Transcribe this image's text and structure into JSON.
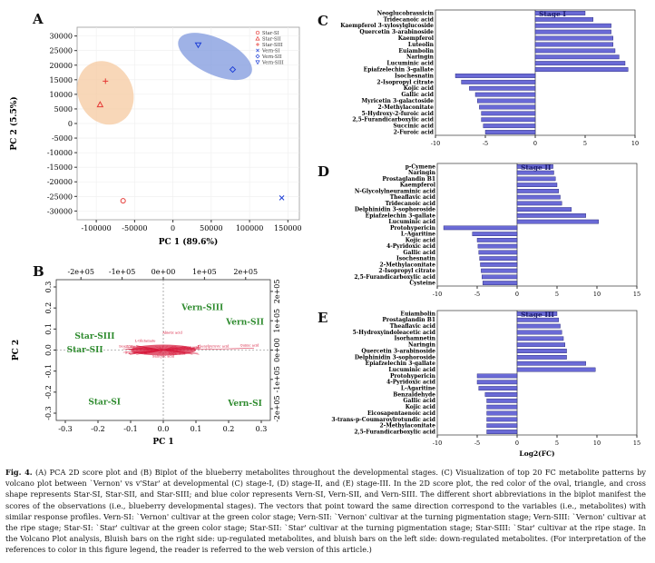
{
  "panels": {
    "A": {
      "label": "A",
      "xlabel": "PC 1 (89.6%)",
      "ylabel": "PC 2 (5.5%)",
      "xticks": [
        "-100000",
        "-50000",
        "0",
        "50000",
        "100000",
        "150000"
      ],
      "yticks": [
        "30000",
        "25000",
        "20000",
        "15000",
        "10000",
        "5000",
        "0",
        "-5000",
        "-10000",
        "-15000",
        "-20000",
        "-25000",
        "-30000"
      ],
      "legend": [
        "Star-SI",
        "Star-SII",
        "Star-SIII",
        "Vern-SI",
        "Vern-SII",
        "Vern-SIII"
      ]
    },
    "B": {
      "label": "B",
      "xlabel": "PC 1",
      "ylabel": "PC 2",
      "bottom_ticks": [
        "-0.3",
        "-0.2",
        "-0.1",
        "0.0",
        "0.1",
        "0.2",
        "0.3"
      ],
      "left_ticks": [
        "0.3",
        "0.2",
        "0.1",
        "0.0",
        "-0.1",
        "-0.2",
        "-0.3"
      ],
      "top_ticks": [
        "-2e+05",
        "-1e+05",
        "0e+00",
        "1e+05",
        "2e+05"
      ],
      "right_ticks": [
        "2e+05",
        "1e+05",
        "0e+00",
        "-1e+05",
        "-2e+05"
      ],
      "sample_labels": [
        "Vern-SIII",
        "Vern-SII",
        "Star-SIII",
        "Star-SII",
        "Star-SI",
        "Vern-SI"
      ],
      "var_labels": [
        "Abietic acid",
        "Quinic acid",
        "Isocitrate",
        "L-Glutamate",
        "Succinic acid",
        "Salicylic acid",
        "Malic acid",
        "Citric acid",
        "Phenylpyruvic acid"
      ]
    },
    "C": {
      "label": "C",
      "stage": "Stage I",
      "xticks": [
        "-10",
        "-5",
        "0",
        "5",
        "10"
      ],
      "categories": [
        "Neoglucobrassicin",
        "Tridecanoic acid",
        "Kaempferol 3-xylosylglucoside",
        "Quercetin 3-arabinoside",
        "Kaempferol",
        "Luteolin",
        "Euiambolin",
        "Naringin",
        "Lucuminic acid",
        "Epiafzelechin 3-gallate",
        "Isochesnatin",
        "2-Isopropyl citrate",
        "Kojic acid",
        "Gallic acid",
        "Myricetin 3-galactoside",
        "2-Methylaconitate",
        "5-Hydroxy-2-furoic acid",
        "2,5-Furandicarboxylic acid",
        "Succinic acid",
        "2-Furoic acid"
      ],
      "values": [
        5.0,
        5.8,
        7.6,
        7.6,
        7.8,
        7.8,
        8.0,
        8.4,
        9.0,
        9.3,
        -8.0,
        -7.4,
        -6.6,
        -6.0,
        -5.8,
        -5.6,
        -5.4,
        -5.4,
        -5.2,
        -5.0
      ]
    },
    "D": {
      "label": "D",
      "stage": "Stage II",
      "xticks": [
        "-10",
        "-5",
        "0",
        "5",
        "10",
        "15"
      ],
      "categories": [
        "p-Cymene",
        "Naringin",
        "Prostaglandin B1",
        "Kaempferol",
        "N-Glycolylneuraminic acid",
        "Theaflavic acid",
        "Tridecanoic acid",
        "Delphinidin 3-sophoroside",
        "Epiafzelechin 3-gallate",
        "Lucuminic acid",
        "Protohypericin",
        "L-Agaritine",
        "Kojic acid",
        "4-Pyridoxic acid",
        "Gallic acid",
        "Isochesnatin",
        "2-Methylaconitate",
        "2-Isopropyl citrate",
        "2,5-Furandicarboxylic acid",
        "Cysteine"
      ],
      "values": [
        4.5,
        4.6,
        4.8,
        5.0,
        5.2,
        5.4,
        5.6,
        6.8,
        8.6,
        10.2,
        -9.2,
        -5.6,
        -5.0,
        -4.9,
        -4.8,
        -4.7,
        -4.6,
        -4.5,
        -4.4,
        -4.3
      ]
    },
    "E": {
      "label": "E",
      "stage": "Stage III",
      "xticks": [
        "-10",
        "-5",
        "0",
        "5",
        "10",
        "15"
      ],
      "xlabel": "Log2(FC)",
      "categories": [
        "Euiambolin",
        "Prostaglandin B1",
        "Theaflavic acid",
        "5-Hydroxyindoleacetic acid",
        "Isorhamnetin",
        "Naringin",
        "Quercetin 3-arabinoside",
        "Delphinidin 3-sophoroside",
        "Epiafzelechin 3-gallate",
        "Lucuminic acid",
        "Protohypericin",
        "4-Pyridoxic acid",
        "L-Agaritine",
        "Benzaldehyde",
        "Gallic acid",
        "Kojic acid",
        "Eicosapentaenoic acid",
        "3-trans-p-Coumaroylrotundic acid",
        "2-Methylaconitate",
        "2,5-Furandicarboxylic acid"
      ],
      "values": [
        5.0,
        5.2,
        5.4,
        5.6,
        5.8,
        6.0,
        6.2,
        6.2,
        8.6,
        9.8,
        -5.0,
        -5.0,
        -4.8,
        -4.0,
        -3.8,
        -3.8,
        -3.8,
        -3.8,
        -3.8,
        -3.8
      ]
    }
  },
  "colors": {
    "bar": "#6a6ad6",
    "bar_edge": "#1c1c6e",
    "star": "#e53935",
    "vern": "#1e3fd6",
    "ellipse_orange": "#f6c9a0",
    "ellipse_blue": "#7f98dd",
    "biplot_label": "#2e8b2e",
    "biplot_var": "#d6183a"
  },
  "caption": {
    "title": "Fig. 4.",
    "text": "(A) PCA 2D score plot and (B) Biplot of the blueberry metabolites throughout the developmental stages. (C) Visualization of top 20 FC metabolite patterns by volcano plot between `Vernon' vs v'Star' at developmental (C) stage-I, (D) stage-II, and (E) stage-III. In the 2D score plot, the red color of the oval, triangle, and cross shape represents Star-SI, Star-SII, and Star-SIII; and blue color represents Vern-SI, Vern-SII, and Vern-SIII. The different short abbreviations in the biplot manifest the scores of the observations (i.e., blueberry developmental stages). The vectors that point toward the same direction correspond to the variables (i.e., metabolites) with similar response profiles. Vern-SI: `Vernon' cultivar at the green color stage; Vern-SII: `Vernon' cultivar at the turning pigmentation stage; Vern-SIII: `Vernon' cultivar at the ripe stage; Star-SI: `Star' cultivar at the green color stage; Star-SII: `Star' cultivar at the turning pigmentation stage; Star-SIII: `Star' cultivar at the ripe stage. In the Volcano Plot analysis, Bluish bars on the right side: up-regulated metabolites, and bluish bars on the left side: down-regulated metabolites. (For interpretation of the references to color in this figure legend, the reader is referred to the web version of this article.)"
  }
}
